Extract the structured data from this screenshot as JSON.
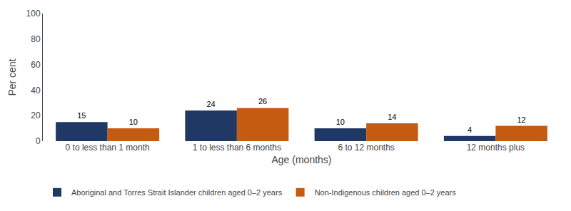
{
  "chart_data": {
    "type": "bar",
    "categories": [
      "0 to less than 1 month",
      "1 to less than 6 months",
      "6 to 12 months",
      "12 months plus"
    ],
    "series": [
      {
        "name": "Aboriginal and Torres Strait Islander children aged 0–2 years",
        "color": "#1F3864",
        "values": [
          15,
          24,
          10,
          4
        ]
      },
      {
        "name": "Non-Indigenous children aged 0–2 years",
        "color": "#C55A11",
        "values": [
          10,
          26,
          14,
          12
        ]
      }
    ],
    "xlabel": "Age (months)",
    "ylabel": "Per cent",
    "ylim": [
      0,
      100
    ],
    "yticks": [
      0,
      20,
      40,
      60,
      80,
      100
    ],
    "data_labels": true,
    "grid": false,
    "legend": "bottom"
  }
}
